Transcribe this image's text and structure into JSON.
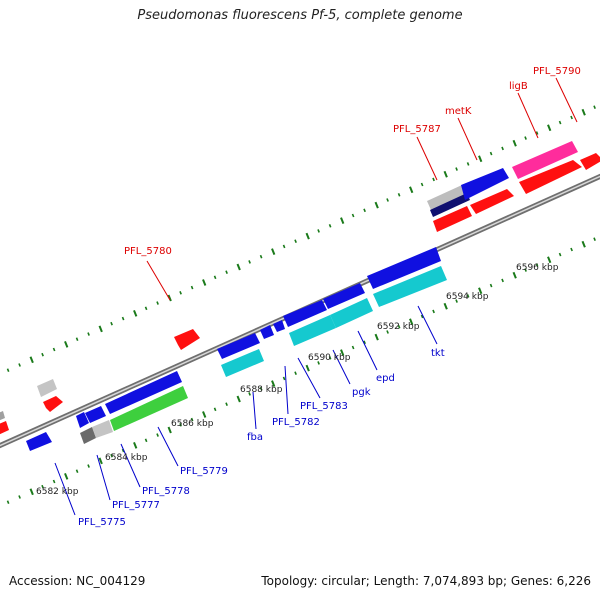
{
  "title": "Pseudomonas fluorescens Pf-5, complete genome",
  "footer": {
    "accession": "Accession: NC_004129",
    "summary": "Topology: circular; Length: 7,074,893 bp; Genes: 6,226"
  },
  "ruler_labels": [
    "6582 kbp",
    "6584 kbp",
    "6586 kbp",
    "6588 kbp",
    "6590 kbp",
    "6592 kbp",
    "6594 kbp",
    "6596 kbp"
  ],
  "gene_labels_top": [
    "PFL_5780",
    "PFL_5787",
    "metK",
    "ligB",
    "PFL_5790"
  ],
  "gene_labels_bottom": [
    "PFL_5775",
    "PFL_5777",
    "PFL_5778",
    "PFL_5779",
    "fba",
    "PFL_5782",
    "PFL_5783",
    "pgk",
    "epd",
    "tkt"
  ],
  "colors": {
    "top_label": "#dd0000",
    "bottom_label": "#0000cc",
    "backbone": "#888888",
    "tick": "#1a7a1a"
  }
}
